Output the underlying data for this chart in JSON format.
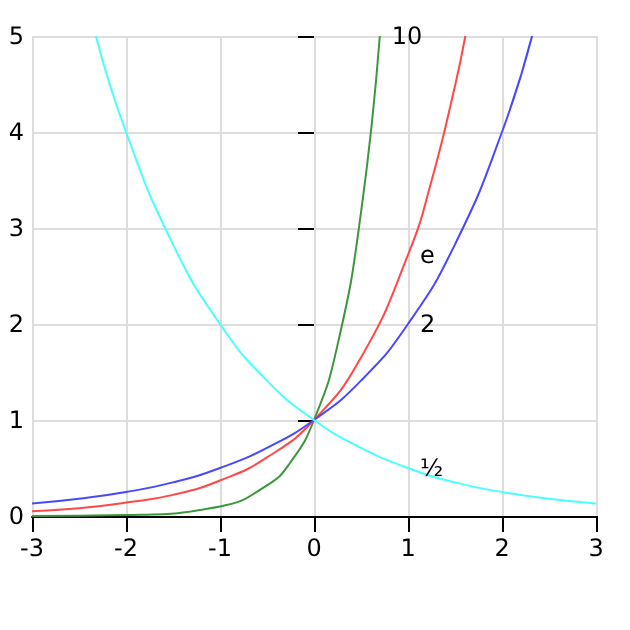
{
  "chart_data": {
    "type": "line",
    "xlim": [
      -3,
      3
    ],
    "xticks": [
      -3,
      -2,
      -1,
      0,
      1,
      2,
      3
    ],
    "ylim": [
      0,
      5
    ],
    "yticks": [
      0,
      1,
      2,
      3,
      4,
      5
    ],
    "grid": true,
    "legend": false,
    "marker": "none",
    "line_style": "solid",
    "series": [
      {
        "name": "10",
        "color": "#3c963c",
        "x": [
          -3,
          -2,
          -1,
          -0.5,
          -0.25,
          0,
          0.25,
          0.5,
          0.7
        ],
        "values": [
          0,
          0.01,
          0.1,
          0.32,
          0.56,
          1,
          1.78,
          3.16,
          5
        ]
      },
      {
        "name": "e",
        "color": "#ff4848",
        "x": [
          -3,
          -2.5,
          -2,
          -1.5,
          -1,
          -0.5,
          0,
          0.5,
          1,
          1.25,
          1.5,
          1.61
        ],
        "values": [
          0.05,
          0.08,
          0.14,
          0.22,
          0.37,
          0.61,
          1,
          1.65,
          2.72,
          3.49,
          4.48,
          5
        ]
      },
      {
        "name": "2",
        "color": "#4848ff",
        "x": [
          -3,
          -2.5,
          -2,
          -1.5,
          -1,
          -0.5,
          0,
          0.5,
          1,
          1.5,
          2,
          2.32
        ],
        "values": [
          0.13,
          0.18,
          0.25,
          0.35,
          0.5,
          0.71,
          1,
          1.41,
          2,
          2.83,
          4,
          5
        ]
      },
      {
        "name": "½",
        "color": "#48ffff",
        "x": [
          -2.32,
          -2,
          -1.5,
          -1,
          -0.5,
          0,
          0.5,
          1,
          1.5,
          2,
          2.5,
          3
        ],
        "values": [
          5,
          4,
          2.83,
          2,
          1.41,
          1,
          0.71,
          0.5,
          0.35,
          0.25,
          0.18,
          0.13
        ]
      }
    ]
  }
}
